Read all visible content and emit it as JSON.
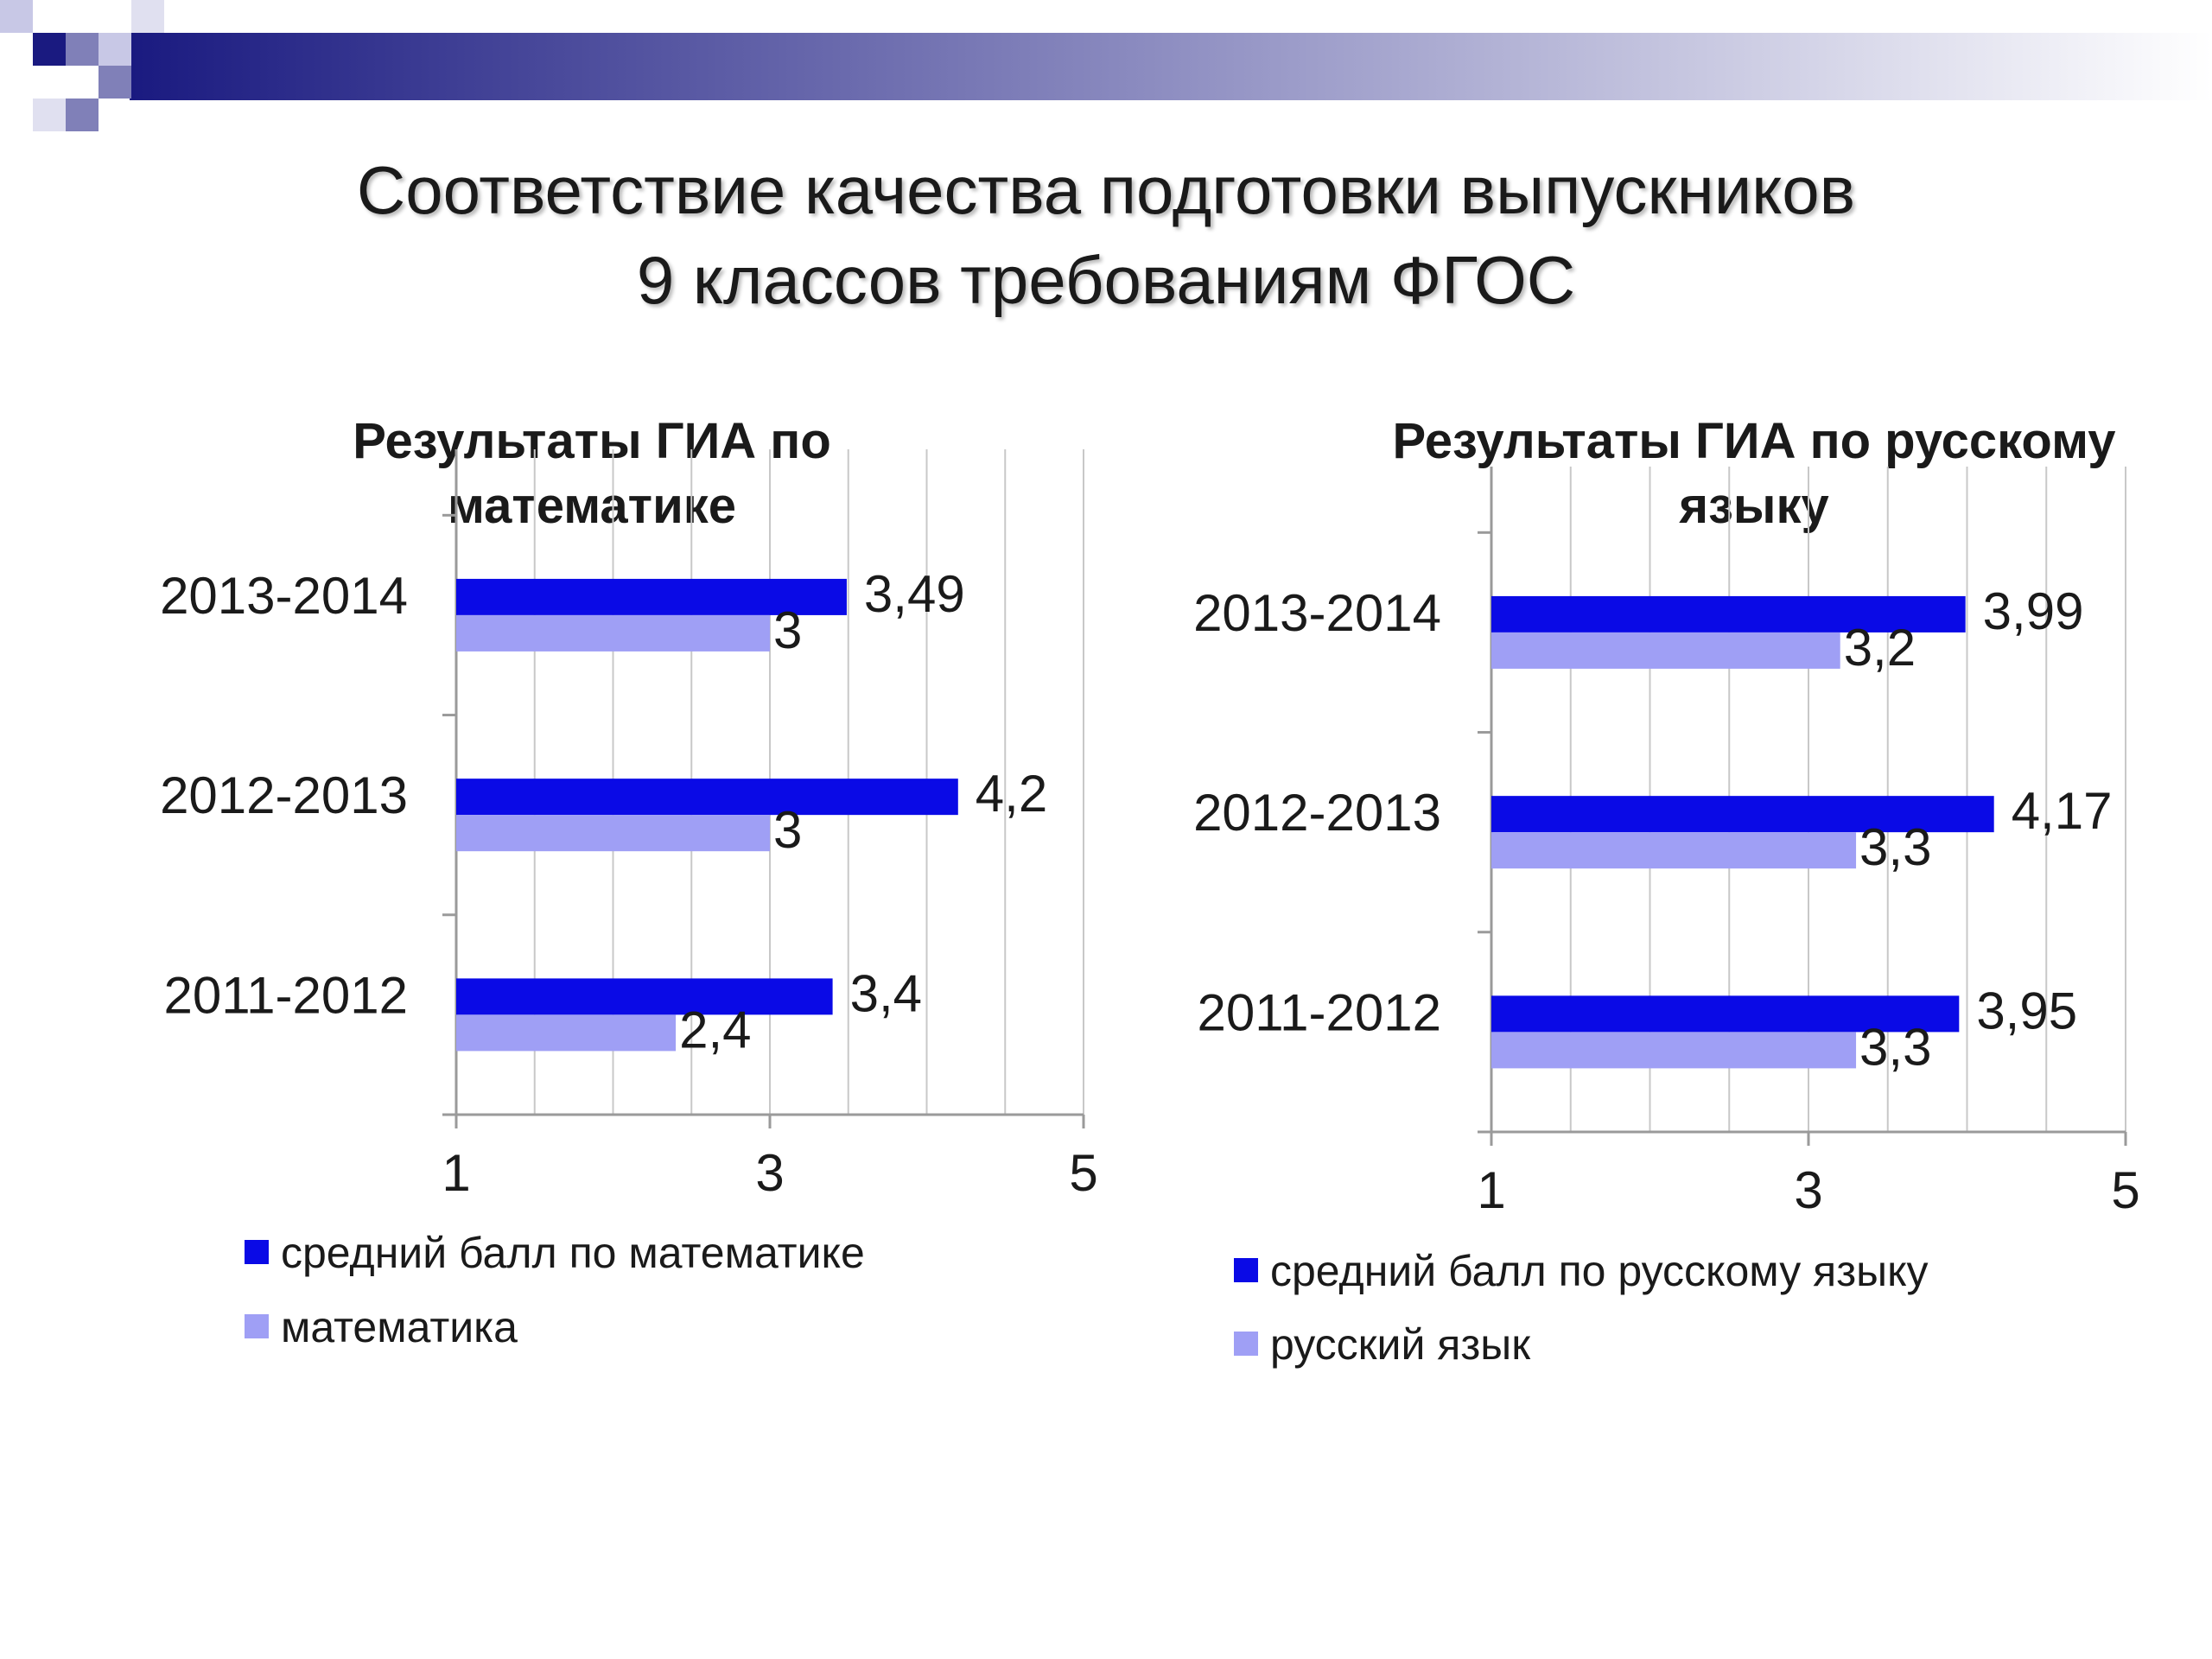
{
  "slide": {
    "title_lines": [
      "Соответствие качества подготовки выпускников",
      "9 классов требованиям ФГОС"
    ],
    "colors": {
      "dark_series": "#0a0ae6",
      "light_series": "#9f9ff5",
      "deco_dark": "#1a1a80",
      "grid": "#c8c8c8"
    }
  },
  "chart_data": [
    {
      "type": "bar",
      "orientation": "horizontal",
      "title_lines": [
        "Результаты ГИА по",
        "математике"
      ],
      "categories": [
        "2013-2014",
        "2012-2013",
        "2011-2012"
      ],
      "series": [
        {
          "name": "средний балл по математике",
          "values": [
            3.49,
            4.2,
            3.4
          ],
          "labels": [
            "3,49",
            "4,2",
            "3,4"
          ],
          "color": "#0a0ae6"
        },
        {
          "name": "математика",
          "values": [
            3,
            3,
            2.4
          ],
          "labels": [
            "3",
            "3",
            "2,4"
          ],
          "color": "#9f9ff5"
        }
      ],
      "xlim": [
        1,
        5
      ],
      "xticks": [
        1,
        3,
        5
      ],
      "grid": true,
      "legend": "bottom"
    },
    {
      "type": "bar",
      "orientation": "horizontal",
      "title_lines": [
        "Результаты ГИА по русскому",
        "языку"
      ],
      "categories": [
        "2013-2014",
        "2012-2013",
        "2011-2012"
      ],
      "series": [
        {
          "name": "средний балл по русскому языку",
          "values": [
            3.99,
            4.17,
            3.95
          ],
          "labels": [
            "3,99",
            "4,17",
            "3,95"
          ],
          "color": "#0a0ae6"
        },
        {
          "name": "русский язык",
          "values": [
            3.2,
            3.3,
            3.3
          ],
          "labels": [
            "3,2",
            "3,3",
            "3,3"
          ],
          "color": "#9f9ff5"
        }
      ],
      "xlim": [
        1,
        5
      ],
      "xticks": [
        1,
        3,
        5
      ],
      "grid": true,
      "legend": "bottom"
    }
  ]
}
